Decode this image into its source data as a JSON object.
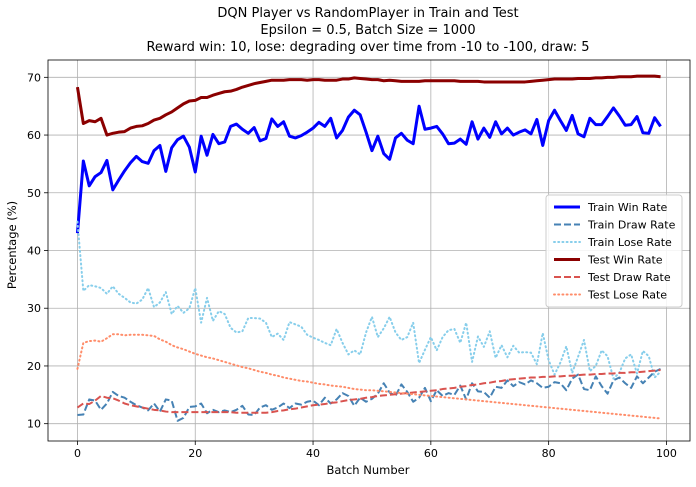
{
  "chart_data": {
    "type": "line",
    "title_lines": [
      "DQN Player vs RandomPlayer in Train and Test",
      "Epsilon = 0.5, Batch Size = 1000",
      "Reward win: 10, lose: degrading over time from -10 to -100, draw: 5"
    ],
    "xlabel": "Batch Number",
    "ylabel": "Percentage (%)",
    "xlim": [
      -5,
      104
    ],
    "ylim": [
      7,
      73
    ],
    "xticks": [
      0,
      20,
      40,
      60,
      80,
      100
    ],
    "yticks": [
      10,
      20,
      30,
      40,
      50,
      60,
      70
    ],
    "grid": true,
    "legend_position": "center-right",
    "series": [
      {
        "name": "Train Win Rate",
        "color": "#0000ff",
        "style": "solid",
        "values": [
          43,
          55.5,
          51.2,
          52.8,
          53.5,
          55.6,
          50.5,
          52.2,
          53.8,
          55.2,
          56.3,
          55.4,
          55.1,
          57.3,
          58.2,
          53.7,
          57.8,
          59.2,
          59.8,
          57.9,
          53.6,
          59.8,
          56.5,
          60.1,
          58.5,
          58.8,
          61.5,
          61.9,
          61.0,
          60.3,
          61.3,
          59.0,
          59.4,
          62.8,
          61.5,
          62.3,
          59.8,
          59.5,
          59.9,
          60.5,
          61.2,
          62.2,
          61.5,
          62.9,
          59.5,
          60.8,
          63.1,
          64.3,
          63.5,
          60.5,
          57.3,
          59.8,
          56.8,
          55.8,
          59.5,
          60.3,
          59.1,
          58.5,
          65.0,
          61.0,
          61.2,
          61.5,
          60.2,
          58.5,
          58.6,
          59.3,
          58.4,
          62.3,
          59.3,
          61.2,
          59.6,
          62.3,
          60.2,
          61.2,
          60.0,
          60.5,
          60.9,
          60.2,
          62.7,
          58.2,
          62.5,
          64.3,
          62.5,
          60.8,
          63.4,
          60.2,
          59.7,
          62.9,
          61.8,
          61.8,
          63.2,
          64.7,
          63.3,
          61.7,
          61.8,
          63.2,
          60.4,
          60.3,
          63.0,
          61.5
        ]
      },
      {
        "name": "Train Draw Rate",
        "color": "#4682b4",
        "style": "dashed",
        "values": [
          11.5,
          11.6,
          14.2,
          14.0,
          12.4,
          13.5,
          15.5,
          14.8,
          14.5,
          13.8,
          13.2,
          12.8,
          12.3,
          13.5,
          12.1,
          14.2,
          14.0,
          10.5,
          11.0,
          12.9,
          13.0,
          13.5,
          11.8,
          12.4,
          12.0,
          12.3,
          12.0,
          12.4,
          13.1,
          11.6,
          11.5,
          12.8,
          13.2,
          12.4,
          12.8,
          13.5,
          12.7,
          13.5,
          13.3,
          13.8,
          14.0,
          13.2,
          14.5,
          13.5,
          14.2,
          15.3,
          14.8,
          13.1,
          14.5,
          13.8,
          14.3,
          15.2,
          17.0,
          15.4,
          14.8,
          16.8,
          15.5,
          13.8,
          14.5,
          16.2,
          13.9,
          15.8,
          14.8,
          15.3,
          15.0,
          16.6,
          14.2,
          17.0,
          15.6,
          15.5,
          14.5,
          16.4,
          16.2,
          17.5,
          16.5,
          17.2,
          16.8,
          17.5,
          17.0,
          16.2,
          16.4,
          17.2,
          17.0,
          15.8,
          17.8,
          18.5,
          16.0,
          15.8,
          18.2,
          16.5,
          15.2,
          17.5,
          18.0,
          17.0,
          16.2,
          18.2,
          17.0,
          18.0,
          19.0,
          19.5
        ]
      },
      {
        "name": "Train Lose Rate",
        "color": "#87ceeb",
        "style": "dotted",
        "values": [
          45,
          33,
          34,
          33.8,
          33.5,
          32.5,
          33.8,
          32.5,
          31.8,
          31.0,
          30.8,
          31.5,
          33.5,
          30.2,
          31.0,
          32.8,
          29.0,
          30.4,
          29.2,
          30.0,
          33.5,
          27.5,
          31.8,
          27.8,
          29.5,
          29.0,
          26.6,
          25.8,
          26.0,
          28.3,
          28.3,
          28.2,
          27.5,
          25.0,
          25.6,
          24.5,
          27.6,
          27.2,
          26.8,
          25.4,
          24.9,
          24.5,
          24.0,
          23.6,
          26.4,
          24.0,
          22.0,
          22.7,
          22.0,
          25.8,
          28.5,
          25.0,
          26.5,
          28.5,
          25.8,
          24.5,
          25.0,
          27.5,
          20.5,
          22.8,
          25.0,
          22.7,
          25.0,
          26.2,
          26.4,
          24.0,
          27.5,
          20.7,
          25.1,
          23.3,
          26.0,
          21.4,
          23.6,
          21.5,
          23.5,
          22.3,
          22.4,
          22.3,
          20.3,
          25.7,
          21.0,
          18.5,
          20.6,
          23.4,
          18.8,
          21.6,
          24.5,
          19.1,
          20.0,
          22.7,
          21.7,
          17.8,
          18.8,
          21.3,
          22.0,
          18.7,
          22.6,
          21.7,
          18.0,
          19.0
        ]
      },
      {
        "name": "Test Win Rate",
        "color": "#8b0000",
        "style": "solid",
        "values": [
          68.3,
          62.0,
          62.5,
          62.3,
          62.9,
          60.0,
          60.3,
          60.5,
          60.6,
          61.2,
          61.5,
          61.6,
          62.0,
          62.6,
          62.9,
          63.5,
          64.0,
          64.7,
          65.4,
          65.9,
          66.0,
          66.5,
          66.5,
          66.9,
          67.2,
          67.5,
          67.6,
          67.9,
          68.3,
          68.6,
          68.9,
          69.1,
          69.3,
          69.5,
          69.5,
          69.5,
          69.6,
          69.6,
          69.6,
          69.5,
          69.6,
          69.6,
          69.5,
          69.5,
          69.5,
          69.7,
          69.7,
          69.9,
          69.8,
          69.7,
          69.6,
          69.6,
          69.4,
          69.5,
          69.4,
          69.3,
          69.3,
          69.3,
          69.3,
          69.4,
          69.4,
          69.4,
          69.4,
          69.4,
          69.4,
          69.3,
          69.3,
          69.3,
          69.3,
          69.2,
          69.2,
          69.2,
          69.2,
          69.2,
          69.2,
          69.2,
          69.2,
          69.3,
          69.4,
          69.5,
          69.6,
          69.7,
          69.7,
          69.7,
          69.7,
          69.8,
          69.8,
          69.8,
          69.9,
          69.9,
          70.0,
          70.0,
          70.1,
          70.1,
          70.1,
          70.2,
          70.2,
          70.2,
          70.2,
          70.1
        ]
      },
      {
        "name": "Test Draw Rate",
        "color": "#d9534f",
        "style": "dashed",
        "values": [
          12.8,
          13.5,
          13.4,
          14.0,
          14.8,
          14.5,
          14.4,
          14.0,
          13.5,
          13.2,
          13.0,
          12.8,
          12.6,
          12.4,
          12.3,
          12.1,
          12.0,
          12.0,
          12.0,
          12.0,
          12.0,
          12.0,
          12.0,
          12.0,
          12.0,
          12.0,
          12.0,
          11.9,
          11.9,
          11.9,
          11.9,
          11.9,
          11.9,
          12.0,
          12.2,
          12.3,
          12.5,
          12.6,
          12.8,
          13.0,
          13.2,
          13.3,
          13.4,
          13.6,
          13.7,
          13.9,
          14.1,
          14.2,
          14.3,
          14.5,
          14.6,
          14.8,
          14.9,
          15.0,
          15.1,
          15.2,
          15.3,
          15.4,
          15.5,
          15.6,
          15.7,
          15.8,
          16.0,
          16.1,
          16.2,
          16.4,
          16.5,
          16.7,
          16.8,
          17.0,
          17.1,
          17.3,
          17.4,
          17.6,
          17.7,
          17.8,
          17.9,
          18.0,
          18.0,
          18.1,
          18.1,
          18.2,
          18.2,
          18.3,
          18.3,
          18.4,
          18.5,
          18.5,
          18.6,
          18.6,
          18.7,
          18.7,
          18.8,
          18.8,
          18.9,
          18.9,
          19.0,
          19.1,
          19.2,
          19.3
        ]
      },
      {
        "name": "Test Lose Rate",
        "color": "#ff8c69",
        "style": "dotted",
        "values": [
          19.5,
          24.0,
          24.3,
          24.4,
          24.2,
          24.8,
          25.5,
          25.5,
          25.3,
          25.4,
          25.4,
          25.4,
          25.3,
          25.2,
          24.6,
          24.2,
          23.6,
          23.2,
          22.9,
          22.5,
          22.1,
          21.8,
          21.5,
          21.3,
          21.0,
          20.7,
          20.4,
          20.1,
          19.8,
          19.6,
          19.3,
          19.0,
          18.8,
          18.5,
          18.3,
          18.0,
          17.8,
          17.6,
          17.4,
          17.3,
          17.1,
          16.9,
          16.8,
          16.6,
          16.5,
          16.4,
          16.2,
          16.0,
          15.9,
          15.8,
          15.8,
          15.7,
          15.6,
          15.5,
          15.4,
          15.3,
          15.2,
          15.1,
          15.0,
          14.9,
          14.8,
          14.7,
          14.6,
          14.5,
          14.4,
          14.3,
          14.2,
          14.1,
          14.0,
          13.9,
          13.8,
          13.7,
          13.6,
          13.5,
          13.4,
          13.3,
          13.2,
          13.1,
          13.0,
          12.9,
          12.8,
          12.7,
          12.6,
          12.5,
          12.4,
          12.3,
          12.2,
          12.1,
          12.0,
          11.9,
          11.8,
          11.7,
          11.6,
          11.5,
          11.4,
          11.3,
          11.2,
          11.1,
          11.0,
          10.9
        ]
      }
    ]
  }
}
